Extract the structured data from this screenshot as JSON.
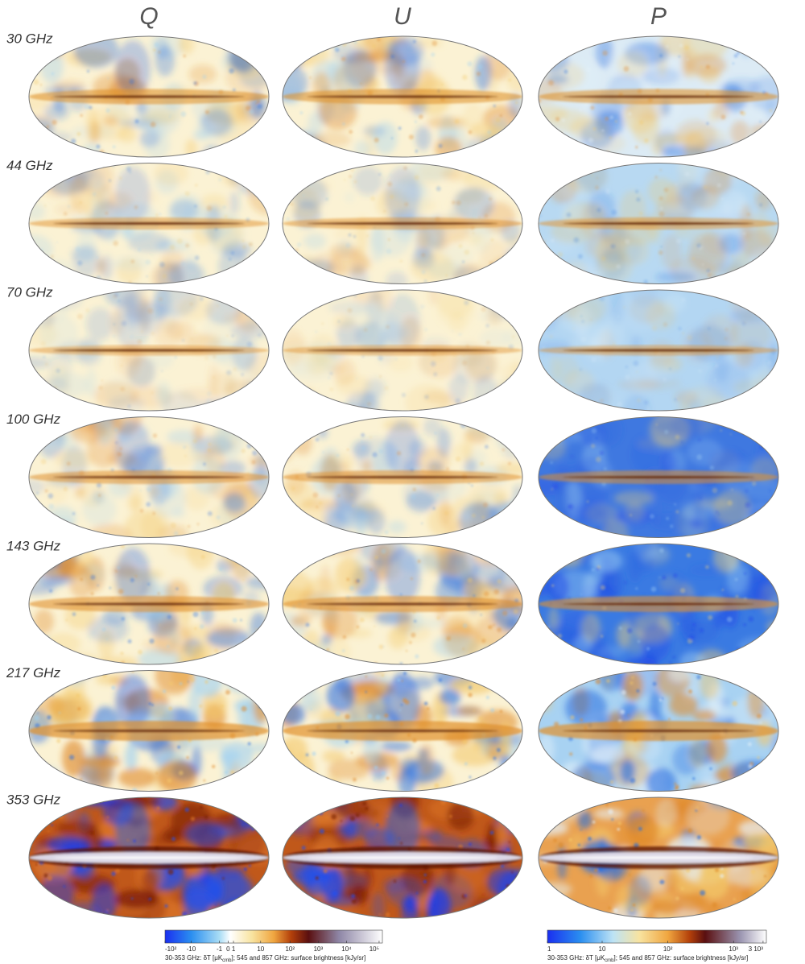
{
  "headers": [
    "Q",
    "U",
    "P"
  ],
  "rows": [
    "30 GHz",
    "44 GHz",
    "70 GHz",
    "100 GHz",
    "143 GHz",
    "217 GHz",
    "353 GHz"
  ],
  "colorbars": [
    {
      "ticks": [
        "-10²",
        "-10",
        "-1",
        "0",
        "1",
        "10",
        "10²",
        "10³",
        "10⁴",
        "10⁵"
      ],
      "caption": {
        "pre": "30-353 GHz: δT [μK",
        "sub": "cmb",
        "post": "]; 545 and 857 GHz: surface brightness [kJy/sr]"
      }
    },
    {
      "ticks": [
        "1",
        "10",
        "10²",
        "10³",
        "3 10³"
      ],
      "caption": {
        "pre": "30-353 GHz: δT [μK",
        "sub": "cmb",
        "post": "]; 545 and 857 GHz: surface brightness [kJy/sr]"
      }
    }
  ]
}
